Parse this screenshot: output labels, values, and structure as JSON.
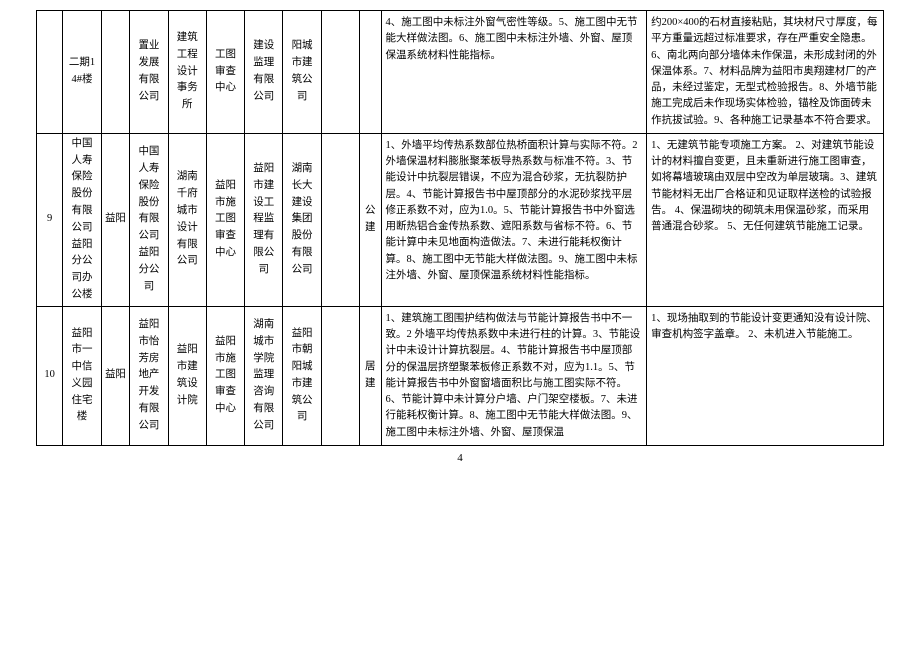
{
  "pagenum": "4",
  "rows": [
    {
      "a": "",
      "b": "二期14#楼",
      "c": "",
      "d": "置业发展有限公司",
      "e": "建筑工程设计事务所",
      "f": "工图审查中心",
      "g": "建设监理有限公司",
      "h": "阳城市建筑公司",
      "i": "",
      "j": "",
      "k": "4、施工图中未标注外窗气密性等级。5、施工图中无节能大样做法图。6、施工图中未标注外墙、外窗、屋顶保温系统材料性能指标。",
      "l": "约200×400的石材直接粘贴，其块材尺寸厚度，每平方重量远超过标准要求，存在严重安全隐患。6、南北两向部分墙体未作保温，未形成封闭的外保温体系。7、材料品牌为益阳市奥翔建材厂的产品，未经过鉴定，无型式检验报告。8、外墙节能施工完成后未作现场实体检验，锚栓及饰面砖未作抗拔试验。9、各种施工记录基本不符合要求。"
    },
    {
      "a": "9",
      "b": "中国人寿保险股份有限公司益阳分公司办公楼",
      "c": "益阳",
      "d": "中国人寿保险股份有限公司益阳分公司",
      "e": "湖南千府城市设计有限公司",
      "f": "益阳市施工图审查中心",
      "g": "益阳市建设工程监理有限公司",
      "h": "湖南长大建设集团股份有限公司",
      "i": "",
      "j": "公建",
      "k": "1、外墙平均传热系数部位热桥面积计算与实际不符。2 外墙保温材料膨胀聚苯板导热系数与标准不符。3、节能设计中抗裂层错误，不应为混合砂浆，无抗裂防护层。4、节能计算报告书中屋顶部分的水泥砂浆找平层修正系数不对，应为1.0。5、节能计算报告书中外窗选用断热铝合金传热系数、遮阳系数与省标不符。6、节能计算中未见地面构造做法。7、未进行能耗权衡计算。8、施工图中无节能大样做法图。9、施工图中未标注外墙、外窗、屋顶保温系统材料性能指标。",
      "l": "1、无建筑节能专项施工方案。\n2、对建筑节能设计的材料擅自变更，且未重新进行施工图审查，如将幕墙玻璃由双层中空改为单层玻璃。3、建筑节能材料无出厂合格证和见证取样送检的试验报告。\n4、保温砌块的砌筑未用保温砂浆，而采用普通混合砂浆。\n5、无任何建筑节能施工记录。"
    },
    {
      "a": "10",
      "b": "益阳市一中信义园住宅楼",
      "c": "益阳",
      "d": "益阳市怡芳房地产开发有限公司",
      "e": "益阳市建筑设计院",
      "f": "益阳市施工图审查中心",
      "g": "湖南城市学院监理咨询有限公司",
      "h": "益阳市朝阳城市建筑公司",
      "i": "",
      "j": "居建",
      "k": "1、建筑施工图围护结构做法与节能计算报告书中不一致。2 外墙平均传热系数中未进行柱的计算。3、节能设计中未设计计算抗裂层。4、节能计算报告书中屋顶部分的保温层挤塑聚苯板修正系数不对，应为1.1。5、节能计算报告书中外窗窗墙面积比与施工图实际不符。6、节能计算中未计算分户墙、户门架空楼板。7、未进行能耗权衡计算。8、施工图中无节能大样做法图。9、施工图中未标注外墙、外窗、屋顶保温",
      "l": "1、现场抽取到的节能设计变更通知没有设计院、审查机构签字盖章。\n2、未机进入节能施工。"
    }
  ]
}
